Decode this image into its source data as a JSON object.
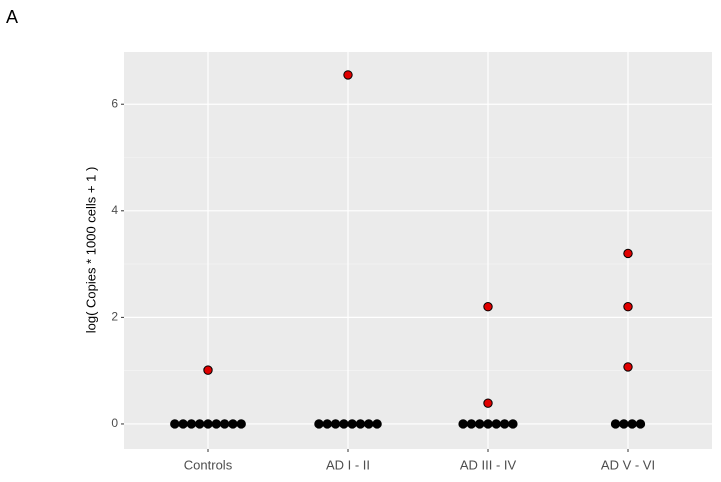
{
  "chart_data": {
    "type": "dotplot",
    "tag": "A",
    "y_label": "log( Copies * 1000 cells + 1 )",
    "categories": [
      "Controls",
      "AD I - II",
      "AD III - IV",
      "AD V - VI"
    ],
    "values": [
      [
        0,
        0,
        0,
        0,
        0,
        0,
        0,
        0,
        0,
        1.01
      ],
      [
        0,
        0,
        0,
        0,
        0,
        0,
        0,
        0,
        6.55
      ],
      [
        0,
        0,
        0,
        0,
        0,
        0,
        0,
        2.2,
        0.39
      ],
      [
        0,
        0,
        0,
        0,
        3.2,
        2.2,
        1.07
      ]
    ],
    "color": "#e00000",
    "zero_color": "#000000",
    "ylim": [
      -0.47,
      6.98
    ],
    "yticks": [
      0,
      2,
      4,
      6
    ],
    "grid": true
  }
}
